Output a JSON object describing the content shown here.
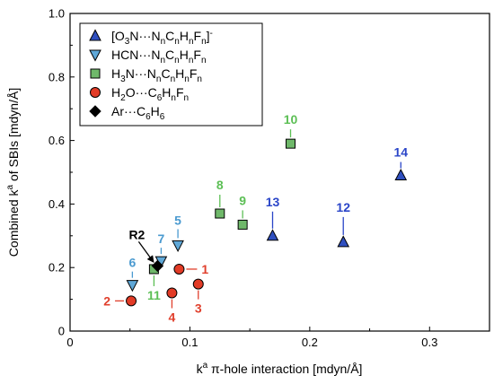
{
  "chart_data": {
    "type": "scatter",
    "xlabel": {
      "pre": "k",
      "sup": "a",
      "post": " π-hole interaction [mdyn/Å]"
    },
    "ylabel": {
      "pre": "Combined k",
      "sup": "a",
      "post": " of SBIs [mdyn/Å]"
    },
    "xlim": [
      0,
      0.35
    ],
    "ylim": [
      0,
      1.0
    ],
    "xticks": [
      0,
      0.1,
      0.2,
      0.3
    ],
    "xtick_labels": [
      "0",
      "0.1",
      "0.2",
      "0.3"
    ],
    "yticks": [
      0,
      0.2,
      0.4,
      0.6,
      0.8,
      1.0
    ],
    "ytick_labels": [
      "0",
      "0.2",
      "0.4",
      "0.6",
      "0.8",
      "1.0"
    ],
    "legend_position": "top-left",
    "series": [
      {
        "marker": "triangle-up",
        "color": "#2f4fbf",
        "label_color": "#2a45c8",
        "legend": [
          {
            "t": "[O",
            "s": ""
          },
          {
            "t": "3",
            "s": "sub"
          },
          {
            "t": "N···N",
            "s": ""
          },
          {
            "t": "n",
            "s": "sub"
          },
          {
            "t": "C",
            "s": ""
          },
          {
            "t": "n",
            "s": "sub"
          },
          {
            "t": "H",
            "s": ""
          },
          {
            "t": "n",
            "s": "sub"
          },
          {
            "t": "F",
            "s": ""
          },
          {
            "t": "n",
            "s": "sub"
          },
          {
            "t": "]",
            "s": ""
          },
          {
            "t": "-",
            "s": "sup"
          }
        ],
        "points": [
          {
            "id": "12",
            "x": 0.228,
            "y": 0.28
          },
          {
            "id": "13",
            "x": 0.169,
            "y": 0.3
          },
          {
            "id": "14",
            "x": 0.276,
            "y": 0.49
          }
        ]
      },
      {
        "marker": "triangle-down",
        "color": "#5fa8d8",
        "label_color": "#4a9ad0",
        "legend": [
          {
            "t": "HCN···N",
            "s": ""
          },
          {
            "t": "n",
            "s": "sub"
          },
          {
            "t": "C",
            "s": ""
          },
          {
            "t": "n",
            "s": "sub"
          },
          {
            "t": "H",
            "s": ""
          },
          {
            "t": "n",
            "s": "sub"
          },
          {
            "t": "F",
            "s": ""
          },
          {
            "t": "n",
            "s": "sub"
          }
        ],
        "points": [
          {
            "id": "5",
            "x": 0.09,
            "y": 0.27
          },
          {
            "id": "6",
            "x": 0.052,
            "y": 0.145
          },
          {
            "id": "7",
            "x": 0.076,
            "y": 0.22
          }
        ]
      },
      {
        "marker": "square",
        "color": "#6fb86a",
        "label_color": "#5cbf55",
        "legend": [
          {
            "t": "H",
            "s": ""
          },
          {
            "t": "3",
            "s": "sub"
          },
          {
            "t": "N···N",
            "s": ""
          },
          {
            "t": "n",
            "s": "sub"
          },
          {
            "t": "C",
            "s": ""
          },
          {
            "t": "n",
            "s": "sub"
          },
          {
            "t": "H",
            "s": ""
          },
          {
            "t": "n",
            "s": "sub"
          },
          {
            "t": "F",
            "s": ""
          },
          {
            "t": "n",
            "s": "sub"
          }
        ],
        "points": [
          {
            "id": "8",
            "x": 0.125,
            "y": 0.37
          },
          {
            "id": "9",
            "x": 0.144,
            "y": 0.335
          },
          {
            "id": "10",
            "x": 0.184,
            "y": 0.59
          },
          {
            "id": "11",
            "x": 0.07,
            "y": 0.195
          }
        ]
      },
      {
        "marker": "circle",
        "color": "#e23b26",
        "label_color": "#e0402d",
        "legend": [
          {
            "t": "H",
            "s": ""
          },
          {
            "t": "2",
            "s": "sub"
          },
          {
            "t": "O···C",
            "s": ""
          },
          {
            "t": "6",
            "s": "sub"
          },
          {
            "t": "H",
            "s": ""
          },
          {
            "t": "n",
            "s": "sub"
          },
          {
            "t": "F",
            "s": ""
          },
          {
            "t": "n",
            "s": "sub"
          }
        ],
        "points": [
          {
            "id": "1",
            "x": 0.091,
            "y": 0.195
          },
          {
            "id": "2",
            "x": 0.051,
            "y": 0.095
          },
          {
            "id": "3",
            "x": 0.107,
            "y": 0.148
          },
          {
            "id": "4",
            "x": 0.085,
            "y": 0.12
          }
        ]
      },
      {
        "marker": "diamond",
        "color": "#000000",
        "label_color": "#000000",
        "legend": [
          {
            "t": "Ar···C",
            "s": ""
          },
          {
            "t": "6",
            "s": "sub"
          },
          {
            "t": "H",
            "s": ""
          },
          {
            "t": "6",
            "s": "sub"
          }
        ],
        "points": [
          {
            "id": "R2",
            "x": 0.073,
            "y": 0.205
          }
        ]
      }
    ]
  }
}
